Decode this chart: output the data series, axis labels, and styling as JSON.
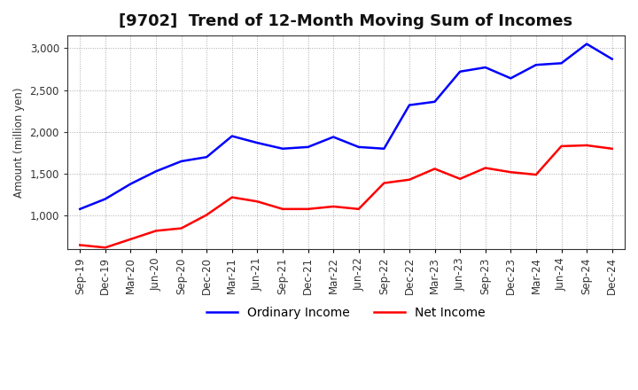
{
  "title": "[9702]  Trend of 12-Month Moving Sum of Incomes",
  "ylabel": "Amount (million yen)",
  "background_color": "#ffffff",
  "grid_color": "#aaaaaa",
  "ordinary_income_color": "#0000ff",
  "net_income_color": "#ff0000",
  "x_labels": [
    "Sep-19",
    "Dec-19",
    "Mar-20",
    "Jun-20",
    "Sep-20",
    "Dec-20",
    "Mar-21",
    "Jun-21",
    "Sep-21",
    "Dec-21",
    "Mar-22",
    "Jun-22",
    "Sep-22",
    "Dec-22",
    "Mar-23",
    "Jun-23",
    "Sep-23",
    "Dec-23",
    "Mar-24",
    "Jun-24",
    "Sep-24",
    "Dec-24"
  ],
  "ordinary_income": [
    1080,
    1200,
    1380,
    1530,
    1650,
    1700,
    1950,
    1870,
    1800,
    1820,
    1940,
    1820,
    1800,
    2320,
    2360,
    2720,
    2770,
    2640,
    2800,
    2820,
    3050,
    2870
  ],
  "net_income": [
    650,
    620,
    720,
    820,
    850,
    1010,
    1220,
    1170,
    1080,
    1080,
    1110,
    1080,
    1390,
    1430,
    1560,
    1440,
    1570,
    1520,
    1490,
    1830,
    1840,
    1800
  ],
  "ylim": [
    600,
    3150
  ],
  "yticks": [
    1000,
    1500,
    2000,
    2500,
    3000
  ],
  "title_fontsize": 13,
  "legend_fontsize": 10,
  "axis_fontsize": 8.5
}
